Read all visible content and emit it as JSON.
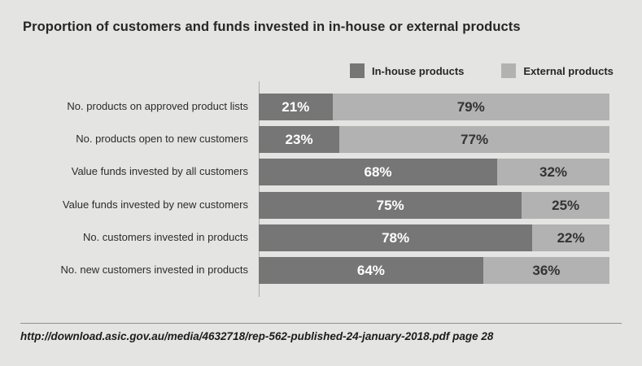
{
  "page": {
    "title": "Proportion of customers and funds invested in in-house or external products",
    "source": "http://download.asic.gov.au/media/4632718/rep-562-published-24-january-2018.pdf page 28"
  },
  "colors": {
    "background": "#e4e4e3",
    "inhouse": "#767676",
    "external": "#b2b2b2",
    "axis_line": "#a8a8a8",
    "rule": "#909090",
    "value_on_dark": "#ffffff",
    "value_on_light": "#333333"
  },
  "chart_data": {
    "type": "bar",
    "orientation": "horizontal",
    "stacked": true,
    "title": "Proportion of customers and funds invested in in-house or external products",
    "categories": [
      "No. products on approved product lists",
      "No. products open to new customers",
      "Value funds invested by all customers",
      "Value funds invested by new customers",
      "No. customers invested in products",
      "No. new customers invested in products"
    ],
    "series": [
      {
        "name": "In-house products",
        "color": "#767676",
        "values": [
          21,
          23,
          68,
          75,
          78,
          64
        ]
      },
      {
        "name": "External products",
        "color": "#b2b2b2",
        "values": [
          79,
          77,
          32,
          25,
          22,
          36
        ]
      }
    ],
    "value_suffix": "%",
    "xlim": [
      0,
      100
    ],
    "xlabel": "",
    "ylabel": "",
    "grid": false,
    "legend_position": "top-right",
    "value_labels": "inside-center"
  }
}
